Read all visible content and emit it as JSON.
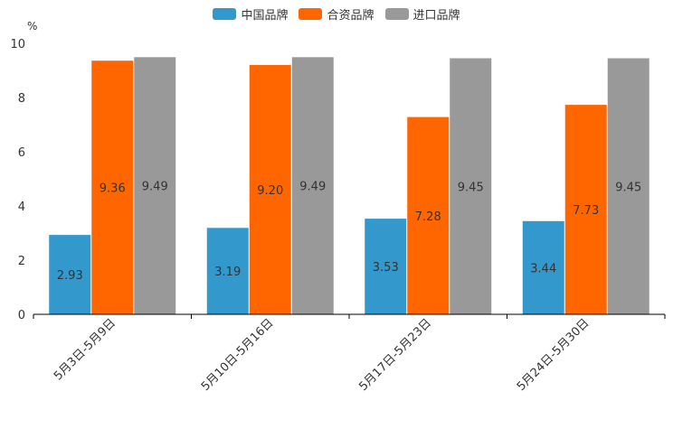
{
  "chart_data": {
    "type": "bar",
    "title": "",
    "unit": "%",
    "categories": [
      "5月3日-5月9日",
      "5月10日-5月16日",
      "5月17日-5月23日",
      "5月24日-5月30日"
    ],
    "series": [
      {
        "name": "中国品牌",
        "color": "#3399cc",
        "values": [
          2.93,
          3.19,
          3.53,
          3.44
        ],
        "labels": [
          "2.93",
          "3.19",
          "3.53",
          "3.44"
        ]
      },
      {
        "name": "合资品牌",
        "color": "#ff6600",
        "values": [
          9.36,
          9.2,
          7.28,
          7.73
        ],
        "labels": [
          "9.36",
          "9.20",
          "7.28",
          "7.73"
        ]
      },
      {
        "name": "进口品牌",
        "color": "#999999",
        "values": [
          9.49,
          9.49,
          9.45,
          9.45
        ],
        "labels": [
          "9.49",
          "9.49",
          "9.45",
          "9.45"
        ]
      }
    ],
    "yticks": [
      "0",
      "2",
      "4",
      "6",
      "8",
      "10"
    ],
    "ylim": [
      0,
      10
    ],
    "xlabel": "",
    "ylabel": ""
  }
}
